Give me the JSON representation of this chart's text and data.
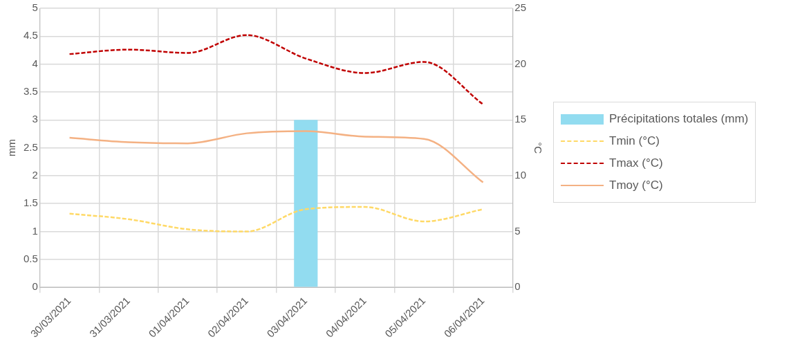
{
  "chart_data": {
    "type": "bar",
    "ylabel": "mm",
    "y2label": "°C",
    "categories": [
      "30/03/2021",
      "31/03/2021",
      "01/04/2021",
      "02/04/2021",
      "03/04/2021",
      "04/04/2021",
      "05/04/2021",
      "06/04/2021"
    ],
    "series": [
      {
        "name": "Précipitations totales (mm)",
        "color": "#92dcf0",
        "values": [
          0,
          0,
          0,
          0,
          3,
          0,
          0,
          0
        ]
      },
      {
        "name": "Tmin (°C)",
        "type": "line",
        "axis": "y2",
        "line_style": "dashed",
        "color": "#ffd966",
        "values": [
          6.6,
          6.1,
          5.2,
          5.0,
          7.0,
          7.2,
          5.9,
          7.0
        ]
      },
      {
        "name": "Tmax (°C)",
        "type": "line",
        "axis": "y2",
        "line_style": "dashed",
        "color": "#c00000",
        "values": [
          20.9,
          21.3,
          21.0,
          22.6,
          20.5,
          19.2,
          20.2,
          16.4
        ]
      },
      {
        "name": "Tmoy (°C)",
        "type": "line",
        "axis": "y2",
        "line_style": "solid",
        "color": "#f4b183",
        "values": [
          13.4,
          13.0,
          12.9,
          13.8,
          14.0,
          13.5,
          13.3,
          9.4
        ]
      }
    ],
    "ylim": [
      0,
      5
    ],
    "yticks": [
      0,
      0.5,
      1,
      1.5,
      2,
      2.5,
      3,
      3.5,
      4,
      4.5,
      5
    ],
    "y2lim": [
      0,
      25
    ],
    "y2ticks": [
      0,
      5,
      10,
      15,
      20,
      25
    ],
    "grid": true,
    "legend": "right",
    "marker": "none"
  }
}
